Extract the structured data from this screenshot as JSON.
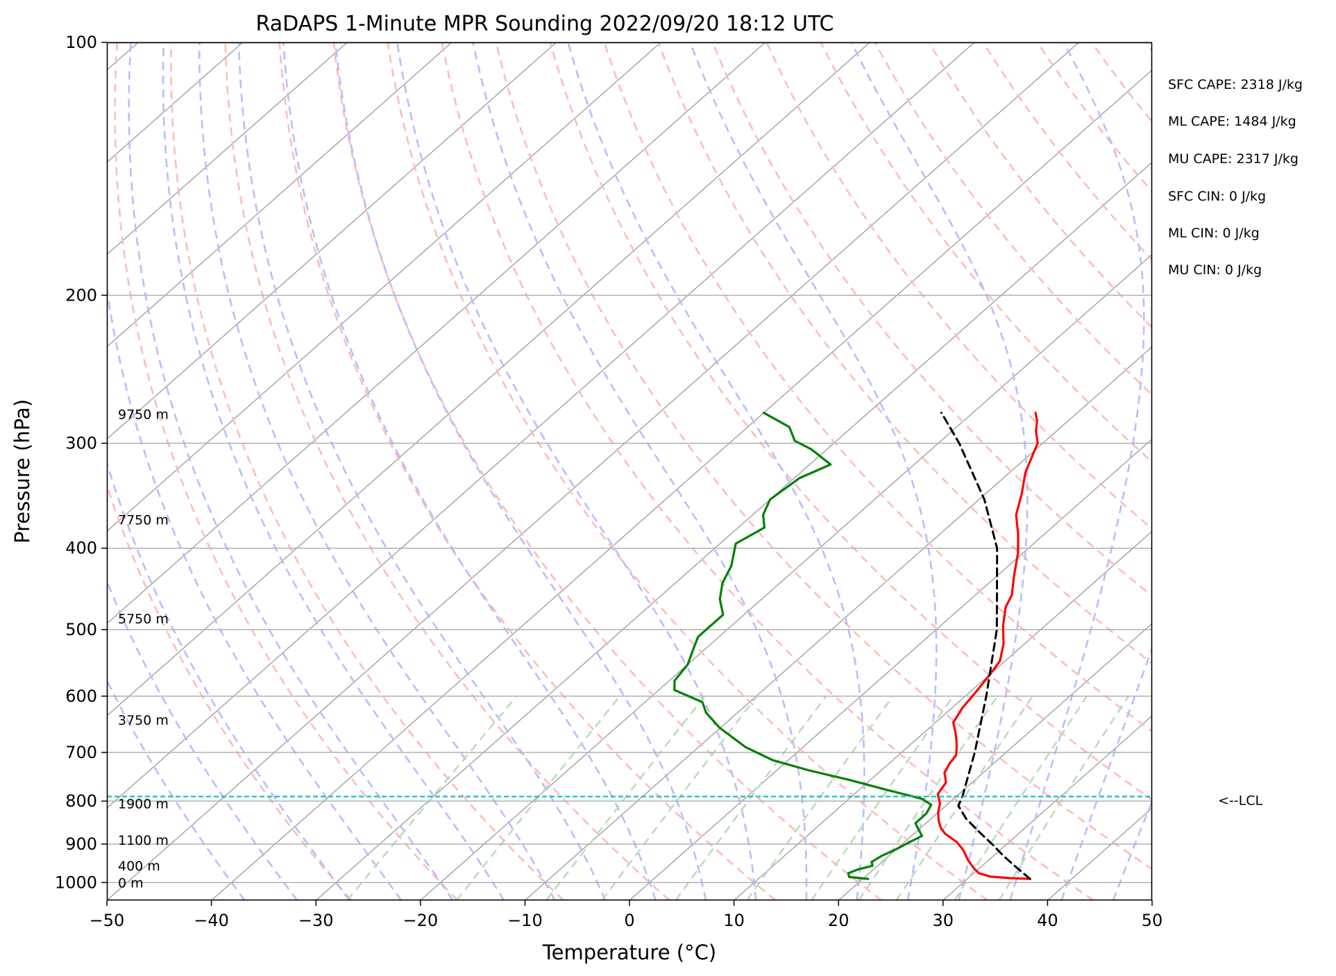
{
  "chart_data": {
    "type": "skew-t log-p sounding",
    "title": "RaDAPS 1-Minute MPR Sounding 2022/09/20 18:12 UTC",
    "xlabel": "Temperature (°C)",
    "ylabel": "Pressure (hPa)",
    "xlim": [
      -50,
      50
    ],
    "ylim_hpa": [
      1050,
      100
    ],
    "y_scale": "log",
    "grid": true,
    "x_ticks": [
      -50,
      -40,
      -30,
      -20,
      -10,
      0,
      10,
      20,
      30,
      40,
      50
    ],
    "x_tick_labels": [
      "−50",
      "−40",
      "−30",
      "−20",
      "−10",
      "0",
      "10",
      "20",
      "30",
      "40",
      "50"
    ],
    "y_ticks": [
      1000,
      900,
      800,
      700,
      600,
      500,
      400,
      300,
      200,
      100
    ],
    "y_tick_labels": [
      "1000",
      "900",
      "800",
      "700",
      "600",
      "500",
      "400",
      "300",
      "200",
      "100"
    ],
    "temperature_profile": {
      "color": "#ff0000",
      "points": [
        [
          990,
          36.0
        ],
        [
          988,
          34.0
        ],
        [
          984,
          32.0
        ],
        [
          975,
          30.5
        ],
        [
          962,
          29.5
        ],
        [
          940,
          28.0
        ],
        [
          915,
          26.5
        ],
        [
          895,
          25.0
        ],
        [
          875,
          23.0
        ],
        [
          862,
          22.0
        ],
        [
          845,
          21.0
        ],
        [
          825,
          20.0
        ],
        [
          805,
          19.2
        ],
        [
          785,
          18.0
        ],
        [
          760,
          17.5
        ],
        [
          740,
          16.3
        ],
        [
          722,
          15.8
        ],
        [
          705,
          15.5
        ],
        [
          690,
          14.7
        ],
        [
          675,
          13.8
        ],
        [
          660,
          12.8
        ],
        [
          645,
          11.7
        ],
        [
          620,
          11.0
        ],
        [
          590,
          10.5
        ],
        [
          565,
          10.0
        ],
        [
          545,
          9.5
        ],
        [
          520,
          8.0
        ],
        [
          495,
          6.0
        ],
        [
          470,
          4.2
        ],
        [
          455,
          3.5
        ],
        [
          430,
          1.5
        ],
        [
          405,
          -0.5
        ],
        [
          385,
          -2.5
        ],
        [
          365,
          -4.8
        ],
        [
          345,
          -6.5
        ],
        [
          325,
          -8.5
        ],
        [
          300,
          -10.5
        ],
        [
          290,
          -12.0
        ],
        [
          282,
          -13.0
        ],
        [
          276,
          -14.0
        ]
      ]
    },
    "dewpoint_profile": {
      "color": "#008000",
      "points": [
        [
          990,
          20.5
        ],
        [
          985,
          18.5
        ],
        [
          975,
          18.0
        ],
        [
          965,
          18.5
        ],
        [
          955,
          19.5
        ],
        [
          945,
          19.0
        ],
        [
          930,
          19.3
        ],
        [
          912,
          20.0
        ],
        [
          895,
          20.5
        ],
        [
          880,
          21.0
        ],
        [
          865,
          20.0
        ],
        [
          850,
          19.0
        ],
        [
          828,
          19.0
        ],
        [
          808,
          18.5
        ],
        [
          795,
          17.0
        ],
        [
          775,
          12.5
        ],
        [
          755,
          8.0
        ],
        [
          735,
          3.0
        ],
        [
          715,
          -1.5
        ],
        [
          690,
          -5.5
        ],
        [
          655,
          -10.0
        ],
        [
          628,
          -13.0
        ],
        [
          610,
          -14.5
        ],
        [
          590,
          -18.5
        ],
        [
          575,
          -19.5
        ],
        [
          550,
          -20.0
        ],
        [
          530,
          -21.0
        ],
        [
          510,
          -22.0
        ],
        [
          480,
          -22.0
        ],
        [
          460,
          -24.0
        ],
        [
          440,
          -25.5
        ],
        [
          420,
          -26.5
        ],
        [
          395,
          -28.5
        ],
        [
          378,
          -27.5
        ],
        [
          365,
          -29.0
        ],
        [
          350,
          -30.0
        ],
        [
          330,
          -29.5
        ],
        [
          318,
          -28.0
        ],
        [
          305,
          -31.5
        ],
        [
          298,
          -34.0
        ],
        [
          287,
          -36.0
        ],
        [
          276,
          -40.0
        ]
      ]
    },
    "parcel_profile": {
      "color": "#000000",
      "style": "dashed",
      "points": [
        [
          990,
          36.0
        ],
        [
          960,
          33.5
        ],
        [
          930,
          31.0
        ],
        [
          900,
          28.6
        ],
        [
          870,
          26.0
        ],
        [
          840,
          23.4
        ],
        [
          810,
          21.2
        ],
        [
          790,
          20.6
        ],
        [
          700,
          17.0
        ],
        [
          600,
          12.0
        ],
        [
          500,
          5.8
        ],
        [
          400,
          -3.0
        ],
        [
          350,
          -9.5
        ],
        [
          300,
          -18.0
        ],
        [
          276,
          -23.0
        ]
      ]
    },
    "lcl_hpa": 790,
    "lcl_label": "<--LCL",
    "lcl_color": "#00c0c0",
    "height_labels": [
      {
        "p": 1000,
        "text": "0 m"
      },
      {
        "p": 955,
        "text": "400 m"
      },
      {
        "p": 890,
        "text": "1100 m"
      },
      {
        "p": 805,
        "text": "1900 m"
      },
      {
        "p": 640,
        "text": "3750 m"
      },
      {
        "p": 485,
        "text": "5750 m"
      },
      {
        "p": 370,
        "text": "7750 m"
      },
      {
        "p": 277,
        "text": "9750 m"
      }
    ],
    "background_lines": {
      "isotherm_color": "#a0a0a0",
      "dry_adiabat_color": "#ffbbbb",
      "moist_adiabat_color": "#bbbbff",
      "mixing_ratio_color": "#bbddbb",
      "dry_adiabats_theta_c": [
        -30,
        -20,
        -10,
        0,
        10,
        20,
        30,
        40,
        50,
        60,
        70,
        80,
        90,
        100,
        110,
        120,
        130,
        140,
        150,
        160,
        170,
        180,
        190
      ],
      "moist_adiabats_c": [
        -40,
        -35,
        -30,
        -25,
        -20,
        -15,
        -10,
        -5,
        0,
        5,
        10,
        15,
        20,
        25,
        30,
        35,
        40,
        45
      ],
      "mixing_ratios_gkg": [
        0.4,
        1,
        2,
        3,
        5,
        8,
        12,
        16,
        20,
        28,
        36
      ]
    },
    "annotations": [
      "SFC CAPE: 2318 J/kg",
      "ML CAPE: 1484 J/kg",
      "MU CAPE: 2317 J/kg",
      "SFC CIN: 0 J/kg",
      "ML CIN: 0 J/kg",
      "MU CIN: 0 J/kg"
    ]
  }
}
